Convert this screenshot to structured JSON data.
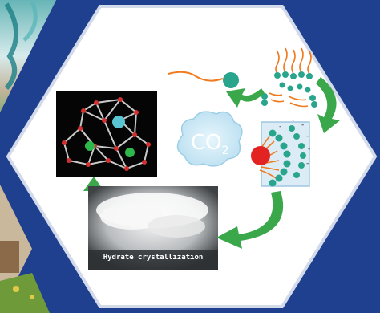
{
  "molecule": {
    "formula_base": "CO",
    "formula_subscript": "2"
  },
  "photo": {
    "caption": "Hydrate crystallization"
  }
}
